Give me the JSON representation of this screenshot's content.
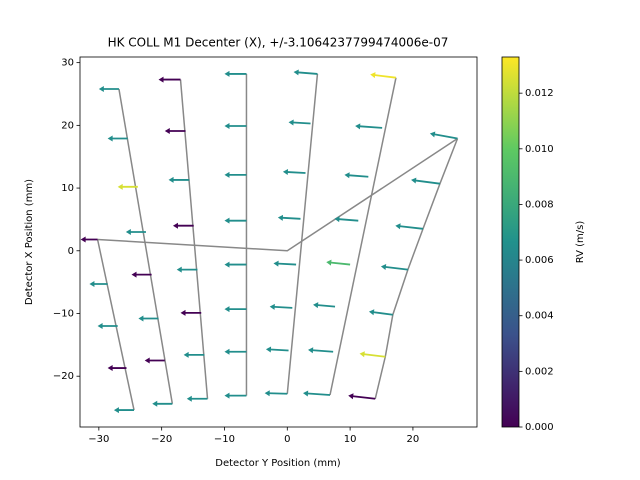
{
  "chart_data": {
    "type": "quiver",
    "title": "HK COLL M1 Decenter (X), +/-3.1064237799474006e-07",
    "x_label": "Detector Y Position (mm)",
    "y_label": "Detector X Position (mm)",
    "colorbar_label": "RV (m/s)",
    "colormap": "viridis",
    "line_color": "#888888",
    "xlim": [
      -33,
      30.2
    ],
    "ylim": [
      -28.1,
      30.9
    ],
    "clim": [
      0,
      0.0133
    ],
    "xticks": [
      {
        "value": -30,
        "label": "−30"
      },
      {
        "value": -20,
        "label": "−20"
      },
      {
        "value": -10,
        "label": "−10"
      },
      0,
      10,
      20
    ],
    "yticks": [
      {
        "value": -20,
        "label": "−20"
      },
      {
        "value": -10,
        "label": "−10"
      },
      0,
      10,
      20,
      30
    ],
    "cticks": [
      {
        "value": 0,
        "label": "0.000"
      },
      {
        "value": 0.002,
        "label": "0.002"
      },
      {
        "value": 0.004,
        "label": "0.004"
      },
      {
        "value": 0.006,
        "label": "0.006"
      },
      {
        "value": 0.008,
        "label": "0.008"
      },
      {
        "value": 0.01,
        "label": "0.010"
      },
      {
        "value": 0.012,
        "label": "0.012"
      }
    ],
    "lines": [
      {
        "x": [
          -26.8,
          -18.3
        ],
        "y": [
          25.8,
          -24.4
        ]
      },
      {
        "x": [
          -30.2,
          -24.4
        ],
        "y": [
          1.8,
          -25.4
        ]
      },
      {
        "x": [
          -17.0,
          -12.7
        ],
        "y": [
          27.3,
          -23.6
        ]
      },
      {
        "x": [
          -6.5,
          -6.5
        ],
        "y": [
          28.2,
          -23.1
        ]
      },
      {
        "x": [
          4.8,
          0.0
        ],
        "y": [
          28.2,
          -22.8
        ]
      },
      {
        "x": [
          17.3,
          6.8
        ],
        "y": [
          27.6,
          -23.0
        ]
      },
      {
        "x": [
          27.1,
          24.3,
          21.6,
          19.2,
          16.8,
          15.6,
          14.0
        ],
        "y": [
          17.9,
          10.7,
          3.5,
          -3.0,
          -10.2,
          -16.9,
          -23.6
        ]
      },
      {
        "x": [
          -30.2,
          0.0,
          27.1
        ],
        "y": [
          1.8,
          0.0,
          17.9
        ]
      }
    ],
    "x": [
      -26.8,
      -25.4,
      -23.8,
      -22.5,
      -21.6,
      -20.5,
      -19.5,
      -18.3,
      -30.2,
      -28.6,
      -27.0,
      -25.6,
      -24.4,
      -17.0,
      -16.2,
      -15.6,
      -14.9,
      -14.3,
      -13.7,
      -13.2,
      -12.7,
      -6.5,
      -6.5,
      -6.5,
      -6.5,
      -6.5,
      -6.5,
      -6.5,
      -6.5,
      4.8,
      3.7,
      2.9,
      2.1,
      1.4,
      0.8,
      0.2,
      0.0,
      17.3,
      15.1,
      12.9,
      11.3,
      10.0,
      7.6,
      7.3,
      6.8,
      27.1,
      24.3,
      21.6,
      19.2,
      16.8,
      15.6,
      14.0
    ],
    "y": [
      25.8,
      17.9,
      10.2,
      3.0,
      -3.8,
      -10.8,
      -17.5,
      -24.4,
      1.8,
      -5.3,
      -12.0,
      -18.7,
      -25.4,
      27.3,
      19.1,
      11.3,
      4.0,
      -3.0,
      -9.9,
      -16.6,
      -23.6,
      28.2,
      19.9,
      12.1,
      4.8,
      -2.2,
      -9.3,
      -16.1,
      -23.1,
      28.2,
      20.3,
      12.4,
      5.1,
      -2.2,
      -9.1,
      -15.9,
      -22.8,
      27.6,
      19.6,
      11.8,
      4.8,
      -2.2,
      -8.9,
      -16.1,
      -23.0,
      17.9,
      10.7,
      3.5,
      -3.0,
      -10.2,
      -16.9,
      -23.6
    ],
    "u": [
      -3.2,
      -3.2,
      -3.2,
      -3.2,
      -3.2,
      -3.2,
      -3.2,
      -3.2,
      -2.7,
      -2.9,
      -3.2,
      -3.0,
      -3.2,
      -3.5,
      -3.3,
      -3.3,
      -3.3,
      -3.3,
      -3.3,
      -3.3,
      -3.3,
      -3.5,
      -3.5,
      -3.5,
      -3.5,
      -3.5,
      -3.5,
      -3.5,
      -3.5,
      -3.8,
      -3.5,
      -3.6,
      -3.6,
      -3.6,
      -3.6,
      -3.6,
      -3.6,
      -4.1,
      -4.3,
      -3.8,
      -3.8,
      -3.8,
      -3.5,
      -4.0,
      -4.3,
      -4.4,
      -4.6,
      -4.4,
      -4.3,
      -3.8,
      -4.1,
      -4.3
    ],
    "v": [
      0,
      0,
      0,
      0,
      0,
      0,
      0,
      0,
      0,
      0,
      0,
      0,
      0,
      0,
      0,
      0,
      0,
      0,
      0,
      0,
      0,
      0,
      0,
      0,
      0,
      0,
      0,
      0,
      0,
      0.3,
      0.2,
      0.2,
      0.2,
      0.2,
      0.2,
      0.2,
      0.1,
      0.5,
      0.3,
      0.3,
      0.3,
      0.4,
      0.3,
      0.3,
      0.3,
      0.8,
      0.6,
      0.5,
      0.5,
      0.5,
      0.5,
      0.5
    ],
    "c": [
      0.0065,
      0.0065,
      0.0125,
      0.0065,
      0.0,
      0.0065,
      0.0,
      0.0065,
      0.0,
      0.0065,
      0.0065,
      0.0,
      0.0065,
      0.0,
      0.0,
      0.0065,
      0.0,
      0.0065,
      0.0,
      0.0065,
      0.0065,
      0.0065,
      0.0065,
      0.0065,
      0.0065,
      0.0065,
      0.0065,
      0.0065,
      0.0065,
      0.0065,
      0.0065,
      0.0065,
      0.0065,
      0.0065,
      0.0065,
      0.0065,
      0.0065,
      0.013,
      0.0065,
      0.0065,
      0.0065,
      0.009,
      0.0065,
      0.0065,
      0.0065,
      0.0065,
      0.0065,
      0.0065,
      0.0065,
      0.0065,
      0.0125,
      0.0
    ]
  }
}
